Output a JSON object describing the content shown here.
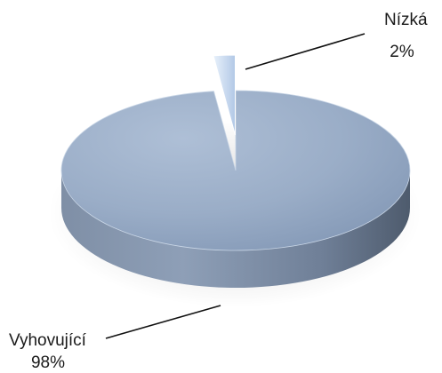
{
  "chart_data": {
    "type": "pie",
    "style": "3d",
    "legend": "none",
    "slices": [
      {
        "label": "Vyhovující",
        "value": 98,
        "value_label": "98%",
        "color": "#8fa5c4"
      },
      {
        "label": "Nízká",
        "value": 2,
        "value_label": "2%",
        "color": "#bfd4ee"
      }
    ]
  }
}
